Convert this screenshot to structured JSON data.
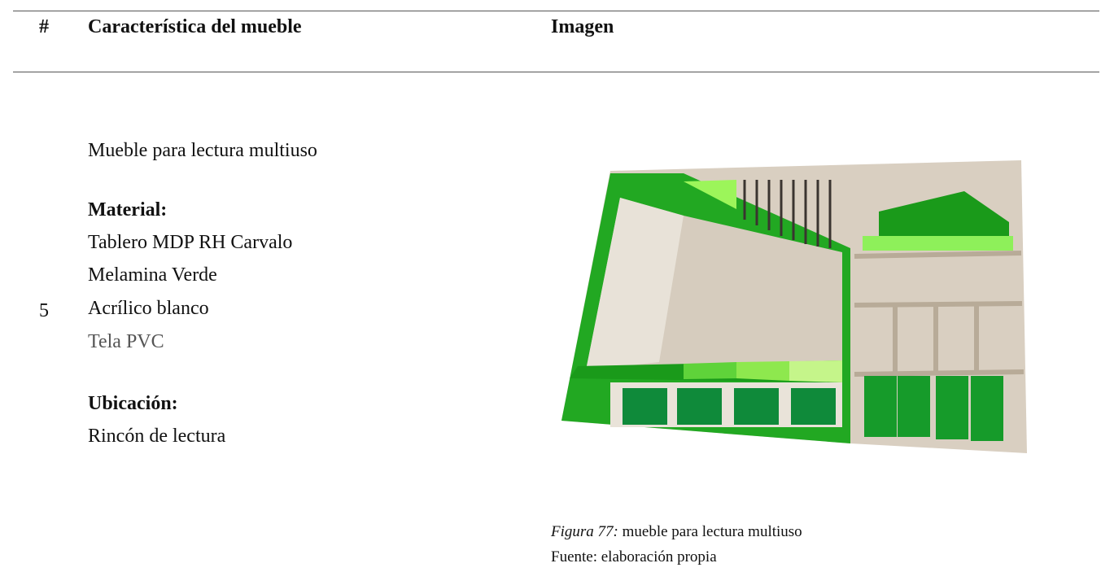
{
  "table": {
    "headers": [
      "#",
      "Característica del mueble",
      "Imagen"
    ],
    "rows": [
      {
        "number": 5,
        "description": "Mueble para lectura multiuso",
        "material_label": "Material:",
        "materials": [
          "Tablero MDP RH Carvalo",
          "Melamina Verde",
          "Acrílico blanco",
          "Tela PVC"
        ],
        "location_label": "Ubicación:",
        "location": "Rincón de lectura",
        "caption": {
          "figure": "Figura 77:",
          "text": " mueble para lectura multiuso",
          "source": "Fuente: elaboración propia"
        }
      }
    ]
  }
}
